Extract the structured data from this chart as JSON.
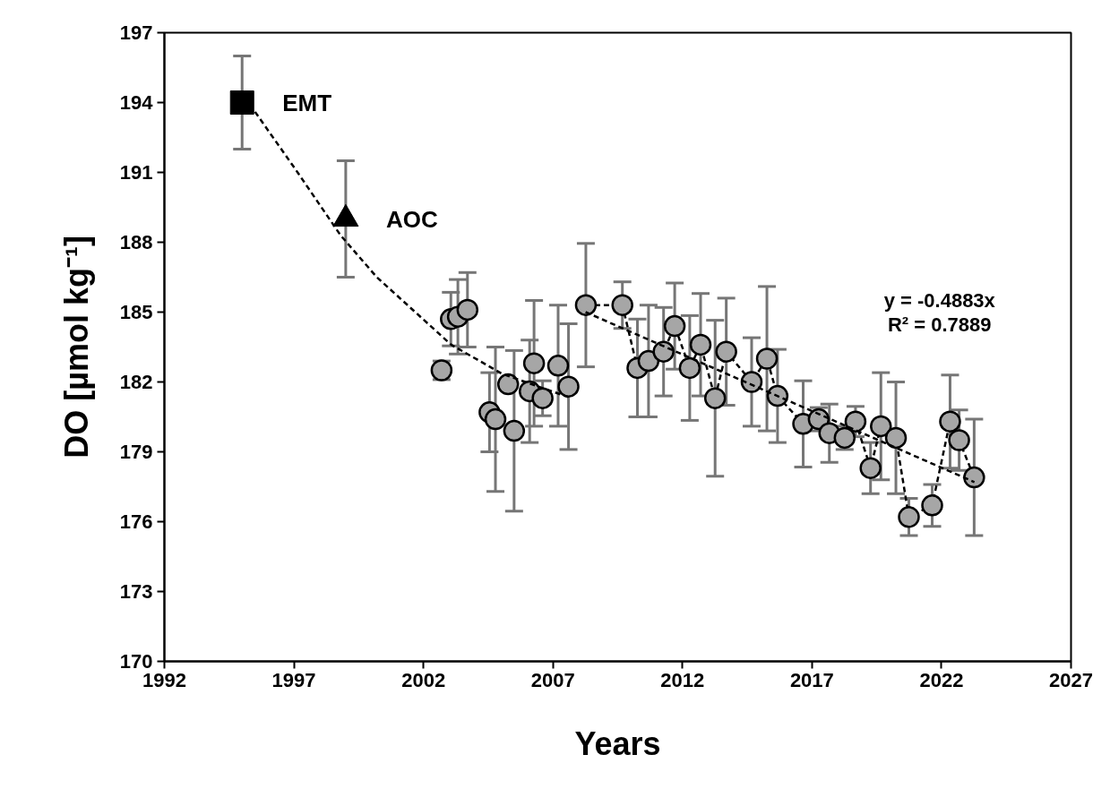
{
  "chart_data": {
    "type": "scatter",
    "xlabel": "Years",
    "ylabel": "DO [µmol kg⁻¹]",
    "xlim": [
      1992,
      2027
    ],
    "xticks": [
      1992,
      1997,
      2002,
      2007,
      2012,
      2017,
      2022,
      2027
    ],
    "ylim": [
      170,
      197
    ],
    "yticks": [
      170,
      173,
      176,
      179,
      182,
      185,
      188,
      191,
      194,
      197
    ],
    "grid": false,
    "series": [
      {
        "name": "EMT",
        "type": "scatter",
        "marker": "square",
        "color": "#000000",
        "x": [
          1995.0
        ],
        "values": [
          194.0
        ],
        "errors": [
          2.0
        ]
      },
      {
        "name": "AOC",
        "type": "scatter",
        "marker": "triangle",
        "color": "#000000",
        "x": [
          1999.0
        ],
        "values": [
          189.0
        ],
        "errors": [
          2.5
        ]
      },
      {
        "type": "scatter",
        "marker": "circle",
        "color": "#a6a6a6",
        "x": [
          2002.7,
          2003.06,
          2003.33,
          2003.7,
          2004.55,
          2004.78,
          2005.27,
          2005.5,
          2006.1,
          2006.27,
          2006.6,
          2007.2,
          2007.6
        ],
        "values": [
          182.5,
          184.7,
          184.8,
          185.1,
          180.7,
          180.4,
          181.9,
          179.9,
          181.6,
          182.8,
          181.3,
          182.7,
          181.8
        ],
        "errors": [
          0.4,
          1.15,
          1.6,
          1.6,
          1.7,
          3.1,
          null,
          3.45,
          2.2,
          2.7,
          0.75,
          2.6,
          2.7
        ]
      },
      {
        "type": "line",
        "marker": "circle",
        "line_style": "dashed",
        "color": "#a6a6a6",
        "x": [
          2008.27,
          2009.68,
          2010.26,
          2010.69,
          2011.27,
          2011.7,
          2012.28,
          2012.7,
          2013.26,
          2013.69,
          2014.67,
          2015.26,
          2015.67,
          2016.66,
          2017.26,
          2017.67,
          2018.26,
          2018.68,
          2019.26,
          2019.66,
          2020.24,
          2020.74,
          2021.64,
          2022.33,
          2022.68,
          2023.26
        ],
        "values": [
          185.3,
          185.3,
          182.6,
          182.9,
          183.3,
          184.4,
          182.6,
          183.6,
          181.3,
          183.3,
          182.0,
          183.0,
          181.4,
          180.2,
          180.4,
          179.8,
          179.6,
          180.3,
          178.3,
          180.1,
          179.6,
          176.2,
          176.7,
          180.3,
          179.5,
          177.9
        ],
        "errors": [
          2.65,
          1.0,
          2.1,
          2.4,
          1.9,
          1.85,
          2.25,
          2.2,
          3.35,
          2.3,
          1.9,
          3.1,
          2.0,
          1.85,
          0.5,
          1.25,
          0.5,
          0.65,
          1.1,
          2.3,
          2.4,
          0.8,
          0.9,
          2.0,
          1.3,
          2.5
        ]
      },
      {
        "type": "line",
        "marker": "none",
        "line_style": "dashed",
        "color": "#000000",
        "x": [
          1995.5,
          1997.08,
          1998.8,
          2000.2,
          2003.07,
          2005.04,
          2007.6
        ],
        "values": [
          193.6,
          191.1,
          188.3,
          186.5,
          183.6,
          182.35,
          181.35
        ]
      },
      {
        "type": "line",
        "marker": "none",
        "line_style": "dashed",
        "color": "#000000",
        "x": [
          2008.26,
          2023.27
        ],
        "values": [
          185.0,
          177.7
        ]
      }
    ],
    "annotations": [
      "y = -0.4883x",
      "R² = 0.7889"
    ]
  }
}
